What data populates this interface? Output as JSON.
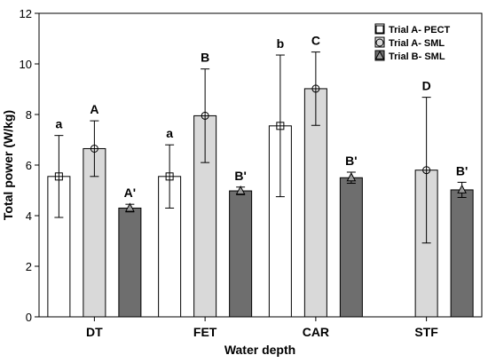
{
  "chart_data": {
    "type": "bar",
    "title": "",
    "xlabel": "Water depth",
    "ylabel": "Total power (W/kg)",
    "ylim": [
      0,
      12
    ],
    "yticks": [
      "0",
      "2",
      "4",
      "6",
      "8",
      "10",
      "12"
    ],
    "grid": false,
    "legend_position": "top-right",
    "categories": [
      "DT",
      "FET",
      "CAR",
      "STF"
    ],
    "series": [
      {
        "name": "Trial A- PECT",
        "fill": "#ffffff",
        "marker": "square",
        "values": [
          5.55,
          5.55,
          7.55,
          null
        ],
        "err": [
          1.62,
          1.25,
          2.8,
          null
        ],
        "labels": [
          "a",
          "a",
          "b",
          ""
        ]
      },
      {
        "name": "Trial A- SML",
        "fill": "#d9d9d9",
        "marker": "circle",
        "values": [
          6.65,
          7.95,
          9.02,
          5.8
        ],
        "err": [
          1.1,
          1.85,
          1.45,
          2.88
        ],
        "labels": [
          "A",
          "B",
          "C",
          "D"
        ]
      },
      {
        "name": "Trial B- SML",
        "fill": "#6e6e6e",
        "marker": "triangle",
        "values": [
          4.3,
          4.98,
          5.5,
          5.02
        ],
        "err": [
          0.15,
          0.15,
          0.22,
          0.3
        ],
        "labels": [
          "A'",
          "B'",
          "B'",
          "B'"
        ]
      }
    ]
  }
}
